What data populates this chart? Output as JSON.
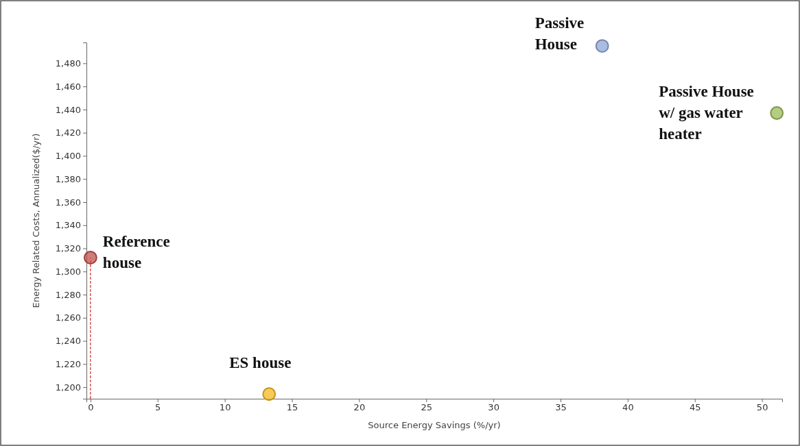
{
  "chart_data": {
    "type": "scatter",
    "xlabel": "Source Energy Savings (%/yr)",
    "ylabel": "Energy Related Costs, Annualized($/yr)",
    "xlim": [
      -0.3,
      51.5
    ],
    "xticks": [
      0,
      5,
      10,
      15,
      20,
      25,
      30,
      35,
      40,
      45,
      50
    ],
    "ylim": [
      1190,
      1498
    ],
    "yticks": [
      {
        "value": 1200,
        "label": "1,200"
      },
      {
        "value": 1220,
        "label": "1,220"
      },
      {
        "value": 1240,
        "label": "1,240"
      },
      {
        "value": 1260,
        "label": "1,260"
      },
      {
        "value": 1280,
        "label": "1,280"
      },
      {
        "value": 1300,
        "label": "1,300"
      },
      {
        "value": 1320,
        "label": "1,320"
      },
      {
        "value": 1340,
        "label": "1,340"
      },
      {
        "value": 1360,
        "label": "1,360"
      },
      {
        "value": 1380,
        "label": "1,380"
      },
      {
        "value": 1400,
        "label": "1,400"
      },
      {
        "value": 1420,
        "label": "1,420"
      },
      {
        "value": 1440,
        "label": "1,440"
      },
      {
        "value": 1460,
        "label": "1,460"
      },
      {
        "value": 1480,
        "label": "1,480"
      }
    ],
    "marker": "circle",
    "grid": false,
    "series": [
      {
        "name": "Reference house",
        "color": "#c0504d",
        "x": [
          0
        ],
        "values": [
          1312
        ]
      },
      {
        "name": "ES house",
        "color": "#f5b820",
        "x": [
          13.3
        ],
        "values": [
          1194
        ]
      },
      {
        "name": "Passive House",
        "color": "#8ea5d6",
        "x": [
          38.1
        ],
        "values": [
          1495
        ]
      },
      {
        "name": "Passive House w/ gas water heater",
        "color": "#9bbb59",
        "x": [
          51.1
        ],
        "values": [
          1437
        ]
      }
    ],
    "ref_lines": [
      {
        "axis": "x",
        "value": 0,
        "color": "#c00000",
        "line_style": "dashed"
      }
    ]
  }
}
